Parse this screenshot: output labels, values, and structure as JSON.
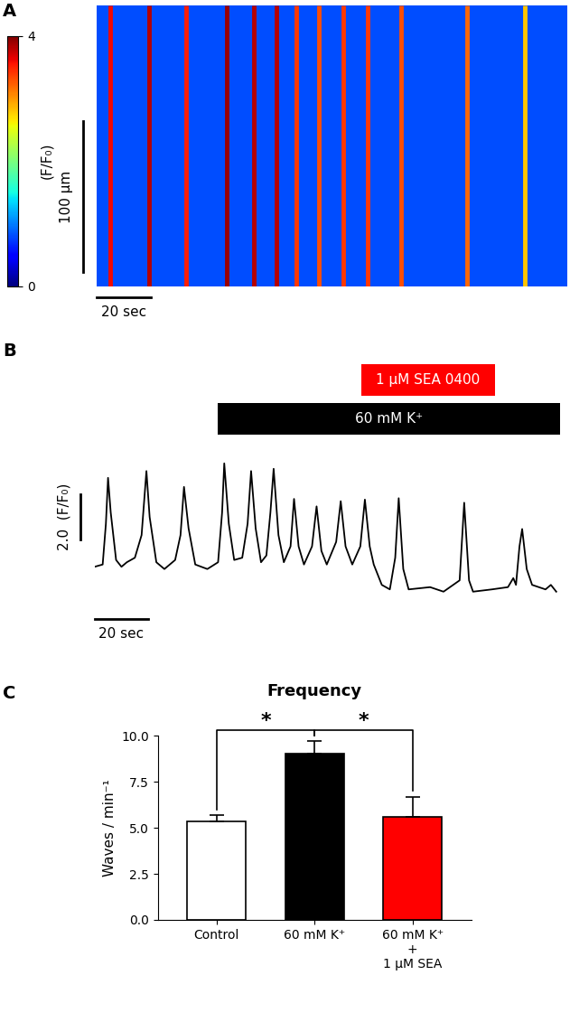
{
  "chart_data": [
    {
      "type": "kymograph",
      "panel": "A",
      "xlim": [
        0,
        175
      ],
      "ylim": [
        0,
        186
      ],
      "tick_labels": false,
      "background": 0.8,
      "wave_times": [
        5,
        19.3,
        33.3,
        48.3,
        58.3,
        66.7,
        74.3,
        82.7,
        91.7,
        100.7,
        113.3,
        137.7,
        159.3
      ],
      "wave_amplitudes": [
        3.6,
        3.8,
        3.5,
        3.9,
        3.8,
        3.8,
        3.4,
        3.3,
        3.4,
        3.4,
        3.3,
        3.2,
        2.8
      ],
      "colorbar": {
        "label": "(F/F₀)",
        "range": [
          0,
          4
        ],
        "ticks": [
          0,
          4
        ]
      },
      "scale_bars": [
        {
          "axis": "y",
          "length": 100,
          "label": "100 µm"
        },
        {
          "axis": "x",
          "length": 20,
          "label": "20 sec"
        }
      ]
    },
    {
      "type": "line",
      "panel": "B",
      "xlim": [
        0,
        175
      ],
      "ylim": [
        0.5,
        7.5
      ],
      "tick_labels": false,
      "color": "#000000",
      "x": [
        0,
        3,
        4.2,
        5,
        6,
        8,
        10,
        12,
        15,
        17.5,
        19.3,
        20.5,
        23,
        26,
        30,
        32,
        33.3,
        35,
        37.5,
        42,
        46,
        47.5,
        48.3,
        50,
        52,
        55,
        57,
        58.3,
        60,
        62,
        64,
        65.5,
        66.7,
        68.5,
        70.5,
        73,
        74.3,
        76,
        78,
        81,
        82.7,
        84.5,
        86.5,
        90,
        91.7,
        93.5,
        96,
        99,
        100.7,
        102.5,
        104,
        107,
        110,
        112,
        113.3,
        115,
        117,
        125,
        130,
        136,
        137.7,
        139.5,
        141,
        148,
        154,
        156,
        157,
        158.3,
        159.3,
        161,
        163,
        168,
        170,
        172
      ],
      "values": [
        2.1,
        2.2,
        4.0,
        6.03,
        4.5,
        2.4,
        2.1,
        2.3,
        2.5,
        3.5,
        6.33,
        4.3,
        2.3,
        2.0,
        2.4,
        3.5,
        5.63,
        3.8,
        2.2,
        2.0,
        2.3,
        4.5,
        6.67,
        4.0,
        2.4,
        2.5,
        4.0,
        6.33,
        3.8,
        2.3,
        2.6,
        4.5,
        6.43,
        3.5,
        2.3,
        3.0,
        5.1,
        3.0,
        2.2,
        3.0,
        4.77,
        2.8,
        2.2,
        3.2,
        5.0,
        3.0,
        2.2,
        3.0,
        5.07,
        3.0,
        2.2,
        1.3,
        1.1,
        2.5,
        5.13,
        2.0,
        1.1,
        1.2,
        1.0,
        1.5,
        4.93,
        1.5,
        1.0,
        1.1,
        1.2,
        1.6,
        1.3,
        3.0,
        3.77,
        2.0,
        1.3,
        1.1,
        1.3,
        1.0
      ],
      "treatments": [
        {
          "label": "1 µM SEA 0400",
          "start": 99.3,
          "end": 149.3,
          "color": "#ff0000"
        },
        {
          "label": "60 mM K⁺",
          "start": 45.7,
          "end": 173.3,
          "color": "#000000"
        }
      ],
      "scale_bars": [
        {
          "axis": "y",
          "length": 2.0,
          "label": "2.0  (F/F₀)"
        },
        {
          "axis": "x",
          "length": 20,
          "label": "20 sec"
        }
      ]
    },
    {
      "type": "bar",
      "panel": "C",
      "title": "Frequency",
      "y_label": "Waves / min⁻¹",
      "categories": [
        "Control",
        "60 mM K⁺",
        "60 mM K⁺\n+\n1 µM SEA"
      ],
      "values": [
        5.35,
        9.05,
        5.6
      ],
      "errors": [
        0.35,
        0.65,
        1.1
      ],
      "colors": [
        "#ffffff",
        "#000000",
        "#ff0000"
      ],
      "ylim": [
        0,
        10
      ],
      "yticks": [
        {
          "value": 0,
          "label": "0.0"
        },
        {
          "value": 2.5,
          "label": "2.5"
        },
        {
          "value": 5,
          "label": "5.0"
        },
        {
          "value": 7.5,
          "label": "7.5"
        },
        {
          "value": 10,
          "label": "10.0"
        }
      ],
      "annotations": [
        {
          "text": "*",
          "between": [
            0,
            1
          ]
        },
        {
          "text": "*",
          "between": [
            1,
            2
          ]
        }
      ]
    }
  ]
}
